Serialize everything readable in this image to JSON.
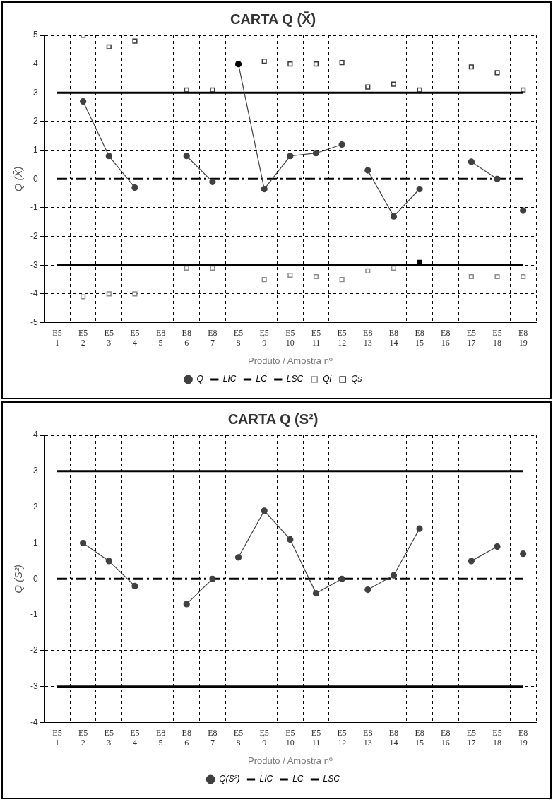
{
  "chart_data": [
    {
      "type": "line",
      "title": "CARTA Q (X̄)",
      "xlabel": "Produto / Amostra nº",
      "ylabel": "Q (X̄)",
      "categories": [
        "E5\n1",
        "E5\n2",
        "E5\n3",
        "E5\n4",
        "E8\n5",
        "E8\n6",
        "E8\n7",
        "E5\n8",
        "E5\n9",
        "E5\n10",
        "E5\n11",
        "E5\n12",
        "E8\n13",
        "E8\n14",
        "E8\n15",
        "E8\n16",
        "E5\n17",
        "E5\n18",
        "E8\n19"
      ],
      "ylim": [
        -5,
        5
      ],
      "yticks": [
        -5,
        -4,
        -3,
        -2,
        -1,
        0,
        1,
        2,
        3,
        4,
        5
      ],
      "grid": true,
      "legend": "bottom",
      "marker": "circle",
      "series": [
        {
          "name": "Q",
          "type": "line",
          "color": "#404040",
          "values": [
            null,
            2.7,
            0.8,
            -0.3,
            null,
            null,
            null,
            null,
            null,
            null,
            null,
            null,
            null,
            null,
            null,
            null,
            null,
            null,
            null
          ]
        },
        {
          "type": "line",
          "color": "#404040",
          "values": [
            null,
            null,
            null,
            null,
            null,
            0.8,
            -0.1,
            null,
            null,
            null,
            null,
            null,
            null,
            null,
            null,
            null,
            null,
            null,
            null
          ]
        },
        {
          "type": "line",
          "color": "#404040",
          "colors": [
            "#404040",
            "#404040",
            "#404040",
            "#404040",
            "#404040",
            "#404040",
            "#404040",
            "#000000",
            "#404040",
            "#404040",
            "#404040",
            "#404040",
            "#404040",
            "#404040",
            "#404040",
            "#404040",
            "#404040",
            "#404040",
            "#404040"
          ],
          "values": [
            null,
            null,
            null,
            null,
            null,
            null,
            null,
            4.0,
            -0.35,
            0.8,
            0.9,
            1.2,
            null,
            null,
            null,
            null,
            null,
            null,
            null
          ]
        },
        {
          "type": "line",
          "color": "#404040",
          "values": [
            null,
            null,
            null,
            null,
            null,
            null,
            null,
            null,
            null,
            null,
            null,
            null,
            0.3,
            -1.3,
            -0.35,
            null,
            null,
            null,
            null
          ]
        },
        {
          "type": "line",
          "color": "#404040",
          "values": [
            null,
            null,
            null,
            null,
            null,
            null,
            null,
            null,
            null,
            null,
            null,
            null,
            null,
            null,
            null,
            null,
            0.6,
            0.0,
            null
          ]
        },
        {
          "type": "line",
          "color": "#404040",
          "values": [
            null,
            null,
            null,
            null,
            null,
            null,
            null,
            null,
            null,
            null,
            null,
            null,
            null,
            null,
            null,
            null,
            null,
            null,
            -1.1
          ]
        },
        {
          "name": "LIC",
          "type": "line",
          "color": "#000000",
          "marker": "none",
          "line_style": "solid",
          "values": [
            -3,
            -3,
            -3,
            -3,
            -3,
            -3,
            -3,
            -3,
            -3,
            -3,
            -3,
            -3,
            -3,
            -3,
            -3,
            -3,
            -3,
            -3,
            -3
          ]
        },
        {
          "name": "LC",
          "type": "line",
          "color": "#000000",
          "marker": "none",
          "line_style": "dashed",
          "values": [
            0,
            0,
            0,
            0,
            0,
            0,
            0,
            0,
            0,
            0,
            0,
            0,
            0,
            0,
            0,
            0,
            0,
            0,
            0
          ]
        },
        {
          "name": "LSC",
          "type": "line",
          "color": "#000000",
          "marker": "none",
          "line_style": "solid",
          "values": [
            3,
            3,
            3,
            3,
            3,
            3,
            3,
            3,
            3,
            3,
            3,
            3,
            3,
            3,
            3,
            3,
            3,
            3,
            3
          ]
        },
        {
          "name": "Qi",
          "type": "scatter",
          "color": "#8c8c8c",
          "marker": "square",
          "colors": [
            "#8c8c8c",
            "#8c8c8c",
            "#8c8c8c",
            "#8c8c8c",
            "#8c8c8c",
            "#8c8c8c",
            "#8c8c8c",
            "#8c8c8c",
            "#8c8c8c",
            "#8c8c8c",
            "#8c8c8c",
            "#8c8c8c",
            "#8c8c8c",
            "#8c8c8c",
            "#000000",
            "#8c8c8c",
            "#8c8c8c",
            "#8c8c8c",
            "#8c8c8c"
          ],
          "values": [
            null,
            -4.1,
            -4.0,
            -4.0,
            null,
            -3.1,
            -3.1,
            null,
            -3.5,
            -3.35,
            -3.4,
            -3.5,
            -3.2,
            -3.1,
            -2.9,
            null,
            -3.4,
            -3.4,
            -3.4
          ]
        },
        {
          "name": "Qs",
          "type": "scatter",
          "color": "#3a3a3a",
          "marker": "square",
          "values": [
            null,
            5.0,
            4.6,
            4.8,
            null,
            3.1,
            3.1,
            null,
            4.1,
            4.0,
            4.0,
            4.05,
            3.2,
            3.3,
            3.1,
            null,
            3.9,
            3.7,
            3.1
          ]
        }
      ]
    },
    {
      "type": "line",
      "title": "CARTA Q (S²)",
      "xlabel": "Produto / Amostra nº",
      "ylabel": "Q (S²)",
      "categories": [
        "E5\n1",
        "E5\n2",
        "E5\n3",
        "E5\n4",
        "E8\n5",
        "E8\n6",
        "E8\n7",
        "E5\n8",
        "E5\n9",
        "E5\n10",
        "E5\n11",
        "E5\n12",
        "E8\n13",
        "E8\n14",
        "E8\n15",
        "E8\n16",
        "E5\n17",
        "E5\n18",
        "E8\n19"
      ],
      "ylim": [
        -4,
        4
      ],
      "yticks": [
        -4,
        -3,
        -2,
        -1,
        0,
        1,
        2,
        3,
        4
      ],
      "grid": true,
      "legend": "bottom",
      "marker": "circle",
      "series": [
        {
          "name": "Q(S²)",
          "type": "line",
          "color": "#404040",
          "values": [
            null,
            1.0,
            0.5,
            -0.2,
            null,
            null,
            null,
            null,
            null,
            null,
            null,
            null,
            null,
            null,
            null,
            null,
            null,
            null,
            null
          ]
        },
        {
          "type": "line",
          "color": "#404040",
          "values": [
            null,
            null,
            null,
            null,
            null,
            -0.7,
            0.0,
            null,
            null,
            null,
            null,
            null,
            null,
            null,
            null,
            null,
            null,
            null,
            null
          ]
        },
        {
          "type": "line",
          "color": "#404040",
          "values": [
            null,
            null,
            null,
            null,
            null,
            null,
            null,
            0.6,
            1.9,
            1.1,
            -0.4,
            0.0,
            null,
            null,
            null,
            null,
            null,
            null,
            null
          ]
        },
        {
          "type": "line",
          "color": "#404040",
          "values": [
            null,
            null,
            null,
            null,
            null,
            null,
            null,
            null,
            null,
            null,
            null,
            null,
            -0.3,
            0.1,
            1.4,
            null,
            null,
            null,
            null
          ]
        },
        {
          "type": "line",
          "color": "#404040",
          "values": [
            null,
            null,
            null,
            null,
            null,
            null,
            null,
            null,
            null,
            null,
            null,
            null,
            null,
            null,
            null,
            null,
            0.5,
            0.9,
            null
          ]
        },
        {
          "type": "line",
          "color": "#404040",
          "values": [
            null,
            null,
            null,
            null,
            null,
            null,
            null,
            null,
            null,
            null,
            null,
            null,
            null,
            null,
            null,
            null,
            null,
            null,
            0.7
          ]
        },
        {
          "name": "LIC",
          "type": "line",
          "color": "#000000",
          "marker": "none",
          "line_style": "solid",
          "values": [
            -3,
            -3,
            -3,
            -3,
            -3,
            -3,
            -3,
            -3,
            -3,
            -3,
            -3,
            -3,
            -3,
            -3,
            -3,
            -3,
            -3,
            -3,
            -3
          ]
        },
        {
          "name": "LC",
          "type": "line",
          "color": "#000000",
          "marker": "none",
          "line_style": "dashed",
          "values": [
            0,
            0,
            0,
            0,
            0,
            0,
            0,
            0,
            0,
            0,
            0,
            0,
            0,
            0,
            0,
            0,
            0,
            0,
            0
          ]
        },
        {
          "name": "LSC",
          "type": "line",
          "color": "#000000",
          "marker": "none",
          "line_style": "solid",
          "values": [
            3,
            3,
            3,
            3,
            3,
            3,
            3,
            3,
            3,
            3,
            3,
            3,
            3,
            3,
            3,
            3,
            3,
            3,
            3
          ]
        }
      ]
    }
  ]
}
